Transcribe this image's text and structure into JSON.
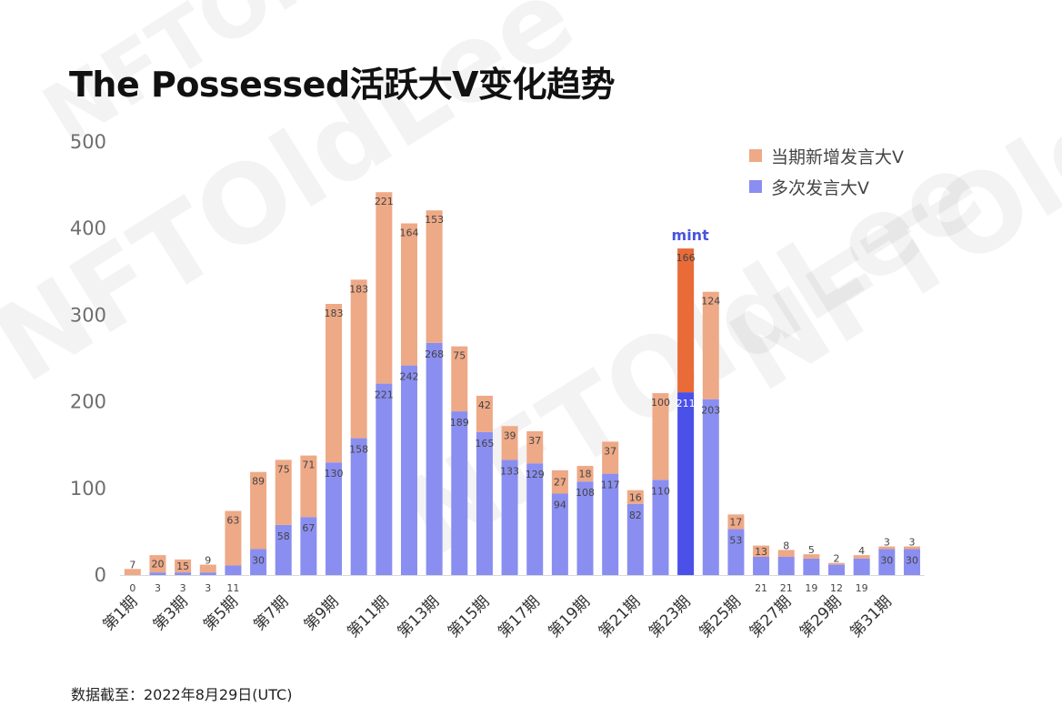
{
  "header": {
    "title": "The Possessed活跃大V变化趋势"
  },
  "footnote": "数据截至：2022年8月29日(UTC)",
  "watermark": "NFTOldLee",
  "colors": {
    "blue": "#8a8ef0",
    "orange": "#eea986",
    "highlight_blue": "#4a50e8",
    "highlight_orange": "#e86b38",
    "annotation": "#4854e0"
  },
  "chart_data": {
    "type": "bar",
    "stacked": true,
    "title": "The Possessed活跃大V变化趋势",
    "categories": [
      "第1期",
      "第2期",
      "第3期",
      "第4期",
      "第5期",
      "第6期",
      "第7期",
      "第8期",
      "第9期",
      "第10期",
      "第11期",
      "第12期",
      "第13期",
      "第14期",
      "第15期",
      "第16期",
      "第17期",
      "第18期",
      "第19期",
      "第20期",
      "第21期",
      "第22期",
      "第23期",
      "第24期",
      "第25期",
      "第26期",
      "第27期",
      "第28期",
      "第29期",
      "第30期",
      "第31期",
      "第32期"
    ],
    "x_tick_labels_shown": [
      "第1期",
      "第3期",
      "第5期",
      "第7期",
      "第9期",
      "第11期",
      "第13期",
      "第15期",
      "第17期",
      "第19期",
      "第21期",
      "第23期",
      "第25期",
      "第27期",
      "第29期",
      "第31期"
    ],
    "series": [
      {
        "name": "多次发言大V",
        "color": "#8a8ef0",
        "values": [
          0,
          3,
          3,
          3,
          11,
          30,
          58,
          67,
          130,
          158,
          221,
          242,
          268,
          189,
          165,
          133,
          129,
          94,
          108,
          117,
          82,
          110,
          211,
          203,
          53,
          21,
          21,
          19,
          12,
          19,
          30,
          30
        ]
      },
      {
        "name": "当期新增发言大V",
        "color": "#eea986",
        "values": [
          7,
          20,
          15,
          9,
          63,
          89,
          75,
          71,
          183,
          183,
          221,
          164,
          153,
          75,
          42,
          39,
          37,
          27,
          18,
          37,
          16,
          100,
          166,
          124,
          17,
          13,
          8,
          5,
          2,
          4,
          3,
          3
        ]
      }
    ],
    "ylim": [
      0,
      500
    ],
    "yticks": [
      0,
      100,
      200,
      300,
      400,
      500
    ],
    "grid": false,
    "legend_position": "top-right",
    "highlight_index": 22,
    "annotation": {
      "index": 22,
      "text": "mint"
    }
  }
}
